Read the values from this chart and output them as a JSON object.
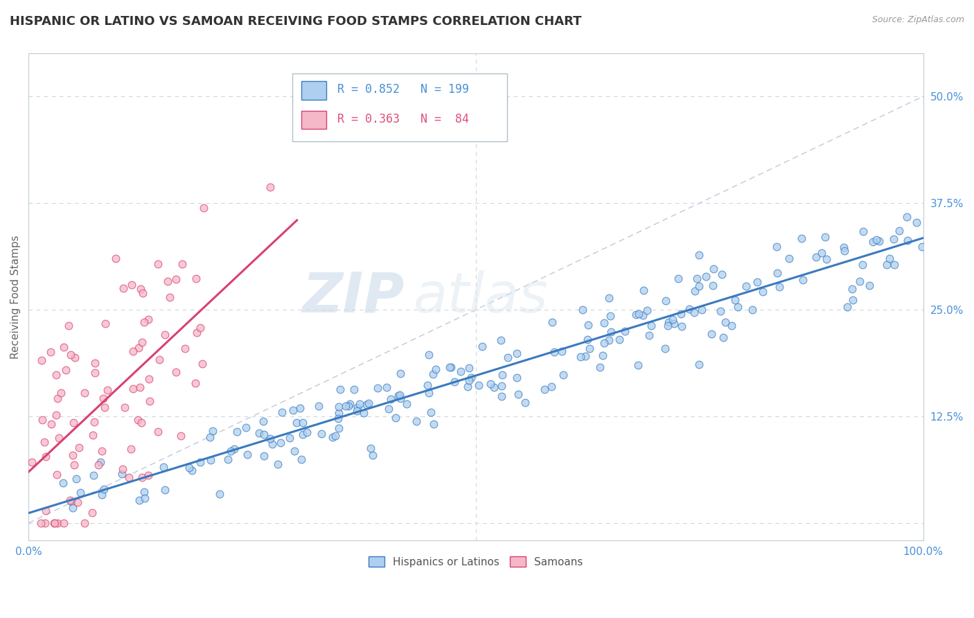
{
  "title": "HISPANIC OR LATINO VS SAMOAN RECEIVING FOOD STAMPS CORRELATION CHART",
  "source": "Source: ZipAtlas.com",
  "xlabel": "",
  "ylabel": "Receiving Food Stamps",
  "xlim": [
    0,
    1.0
  ],
  "ylim": [
    -0.02,
    0.55
  ],
  "yticks": [
    0.125,
    0.25,
    0.375,
    0.5
  ],
  "ytick_labels": [
    "12.5%",
    "25.0%",
    "37.5%",
    "50.0%"
  ],
  "r_hispanic": 0.852,
  "n_hispanic": 199,
  "r_samoan": 0.363,
  "n_samoan": 84,
  "color_hispanic": "#aecff0",
  "color_samoan": "#f5b8c8",
  "color_hispanic_line": "#3a7abf",
  "color_samoan_line": "#d94070",
  "color_text_blue": "#4a90d9",
  "color_text_pink": "#e0507a",
  "background_color": "#ffffff",
  "watermark_zip": "ZIP",
  "watermark_atlas": "atlas",
  "legend_label_hispanic": "Hispanics or Latinos",
  "legend_label_samoan": "Samoans",
  "title_fontsize": 13,
  "axis_label_fontsize": 11,
  "tick_fontsize": 11,
  "seed": 7
}
